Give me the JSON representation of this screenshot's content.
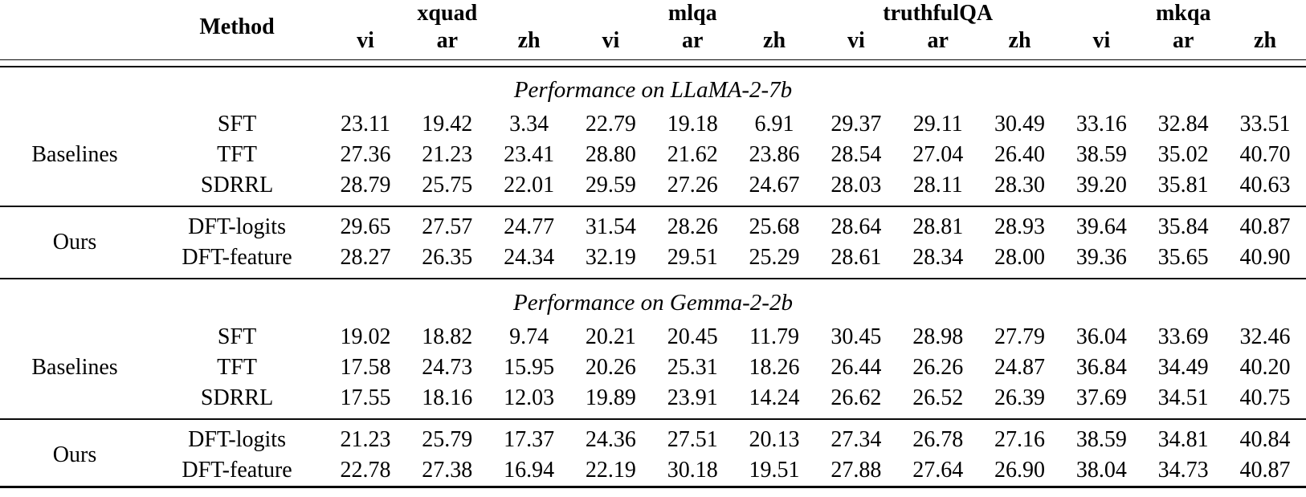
{
  "table": {
    "method_header": "Method",
    "col_groups": [
      {
        "label": "xquad",
        "subcols": [
          "vi",
          "ar",
          "zh"
        ]
      },
      {
        "label": "mlqa",
        "subcols": [
          "vi",
          "ar",
          "zh"
        ]
      },
      {
        "label": "truthfulQA",
        "subcols": [
          "vi",
          "ar",
          "zh"
        ]
      },
      {
        "label": "mkqa",
        "subcols": [
          "vi",
          "ar",
          "zh"
        ]
      }
    ],
    "sections": [
      {
        "title": "Performance on LLaMA-2-7b",
        "groups": [
          {
            "label": "Baselines",
            "rows": [
              {
                "method": "SFT",
                "values": [
                  "23.11",
                  "19.42",
                  "3.34",
                  "22.79",
                  "19.18",
                  "6.91",
                  "29.37",
                  "29.11",
                  "30.49",
                  "33.16",
                  "32.84",
                  "33.51"
                ],
                "bold": [
                  6,
                  7,
                  8
                ]
              },
              {
                "method": "TFT",
                "values": [
                  "27.36",
                  "21.23",
                  "23.41",
                  "28.80",
                  "21.62",
                  "23.86",
                  "28.54",
                  "27.04",
                  "26.40",
                  "38.59",
                  "35.02",
                  "40.70"
                ],
                "bold": []
              },
              {
                "method": "SDRRL",
                "values": [
                  "28.79",
                  "25.75",
                  "22.01",
                  "29.59",
                  "27.26",
                  "24.67",
                  "28.03",
                  "28.11",
                  "28.30",
                  "39.20",
                  "35.81",
                  "40.63"
                ],
                "bold": []
              }
            ]
          },
          {
            "label": "Ours",
            "rows": [
              {
                "method": "DFT-logits",
                "values": [
                  "29.65",
                  "27.57",
                  "24.77",
                  "31.54",
                  "28.26",
                  "25.68",
                  "28.64",
                  "28.81",
                  "28.93",
                  "39.64",
                  "35.84",
                  "40.87"
                ],
                "bold": [
                  0,
                  1,
                  2,
                  5,
                  9,
                  10
                ]
              },
              {
                "method": "DFT-feature",
                "values": [
                  "28.27",
                  "26.35",
                  "24.34",
                  "32.19",
                  "29.51",
                  "25.29",
                  "28.61",
                  "28.34",
                  "28.00",
                  "39.36",
                  "35.65",
                  "40.90"
                ],
                "bold": [
                  3,
                  4,
                  11
                ]
              }
            ]
          }
        ]
      },
      {
        "title": "Performance on Gemma-2-2b",
        "groups": [
          {
            "label": "Baselines",
            "rows": [
              {
                "method": "SFT",
                "values": [
                  "19.02",
                  "18.82",
                  "9.74",
                  "20.21",
                  "20.45",
                  "11.79",
                  "30.45",
                  "28.98",
                  "27.79",
                  "36.04",
                  "33.69",
                  "32.46"
                ],
                "bold": [
                  6,
                  7,
                  8
                ]
              },
              {
                "method": "TFT",
                "values": [
                  "17.58",
                  "24.73",
                  "15.95",
                  "20.26",
                  "25.31",
                  "18.26",
                  "26.44",
                  "26.26",
                  "24.87",
                  "36.84",
                  "34.49",
                  "40.20"
                ],
                "bold": []
              },
              {
                "method": "SDRRL",
                "values": [
                  "17.55",
                  "18.16",
                  "12.03",
                  "19.89",
                  "23.91",
                  "14.24",
                  "26.62",
                  "26.52",
                  "26.39",
                  "37.69",
                  "34.51",
                  "40.75"
                ],
                "bold": []
              }
            ]
          },
          {
            "label": "Ours",
            "rows": [
              {
                "method": "DFT-logits",
                "values": [
                  "21.23",
                  "25.79",
                  "17.37",
                  "24.36",
                  "27.51",
                  "20.13",
                  "27.34",
                  "26.78",
                  "27.16",
                  "38.59",
                  "34.81",
                  "40.84"
                ],
                "bold": [
                  2,
                  3,
                  5,
                  9,
                  10
                ]
              },
              {
                "method": "DFT-feature",
                "values": [
                  "22.78",
                  "27.38",
                  "16.94",
                  "22.19",
                  "30.18",
                  "19.51",
                  "27.88",
                  "27.64",
                  "26.90",
                  "38.04",
                  "34.73",
                  "40.87"
                ],
                "bold": [
                  0,
                  1,
                  4,
                  11
                ]
              }
            ]
          }
        ]
      }
    ]
  }
}
